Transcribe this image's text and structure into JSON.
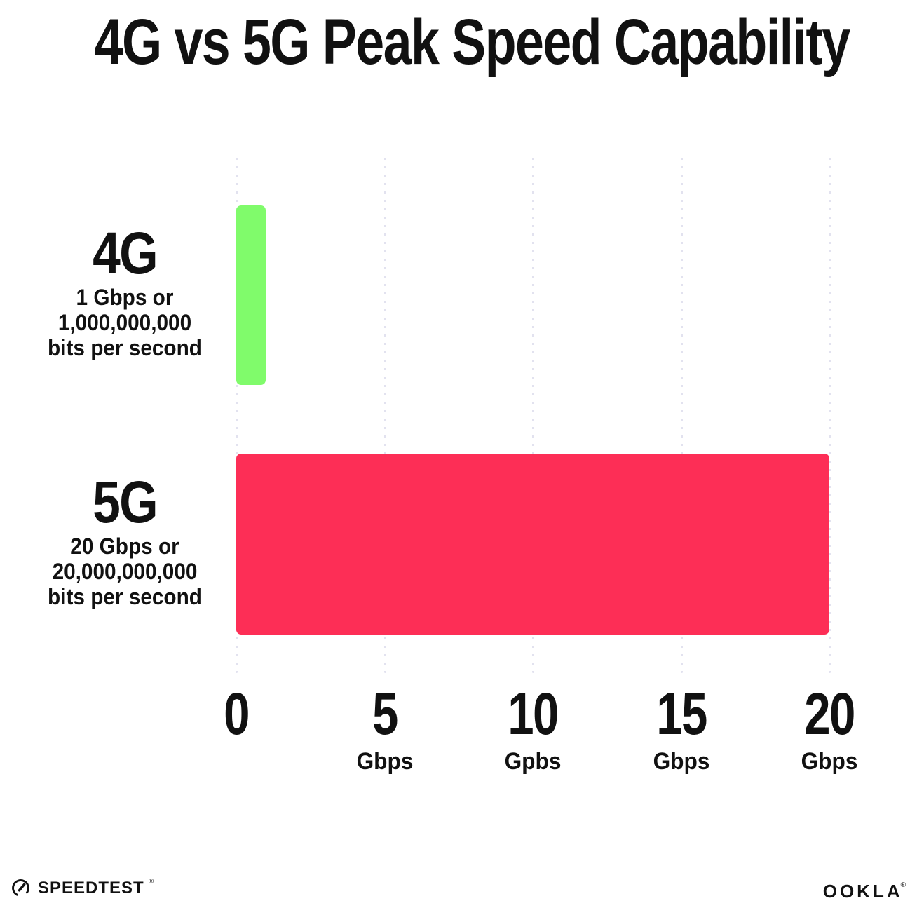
{
  "title": "4G vs 5G Peak Speed Capability",
  "rows": [
    {
      "label": "4G",
      "sub_lines": [
        "1 Gbps or",
        "1,000,000,000",
        "bits per second"
      ],
      "value": 1,
      "color": "#80FB6B"
    },
    {
      "label": "5G",
      "sub_lines": [
        "20 Gbps or",
        "20,000,000,000",
        "bits per second"
      ],
      "value": 20,
      "color": "#FD2E56"
    }
  ],
  "x_axis": {
    "ticks": [
      {
        "num": "0",
        "unit": "",
        "value": 0
      },
      {
        "num": "5",
        "unit": "Gbps",
        "value": 5
      },
      {
        "num": "10",
        "unit": "Gpbs",
        "value": 10
      },
      {
        "num": "15",
        "unit": "Gbps",
        "value": 15
      },
      {
        "num": "20",
        "unit": "Gbps",
        "value": 20
      }
    ]
  },
  "footer": {
    "speedtest": "SPEEDTEST",
    "speedtest_mark": "®",
    "ookla": "OOKLA",
    "ookla_mark": "®"
  },
  "colors": {
    "bar_4g": "#80FB6B",
    "bar_5g": "#FD2E56",
    "gridline": "#E2E2EF",
    "text": "#111111"
  },
  "chart_data": {
    "type": "bar",
    "orientation": "horizontal",
    "title": "4G vs 5G Peak Speed Capability",
    "categories": [
      "4G",
      "5G"
    ],
    "values": [
      1,
      20
    ],
    "unit": "Gbps",
    "series_colors": [
      "#80FB6B",
      "#FD2E56"
    ],
    "xlim": [
      0,
      20
    ],
    "x_tick_values": [
      0,
      5,
      10,
      15,
      20
    ],
    "x_tick_labels": [
      "0",
      "5 Gbps",
      "10 Gpbs",
      "15 Gbps",
      "20 Gbps"
    ],
    "grid": "vertical-dotted",
    "legend": "none",
    "annotations": [
      "4G: 1 Gbps or 1,000,000,000 bits per second",
      "5G: 20 Gbps or 20,000,000,000 bits per second"
    ]
  }
}
